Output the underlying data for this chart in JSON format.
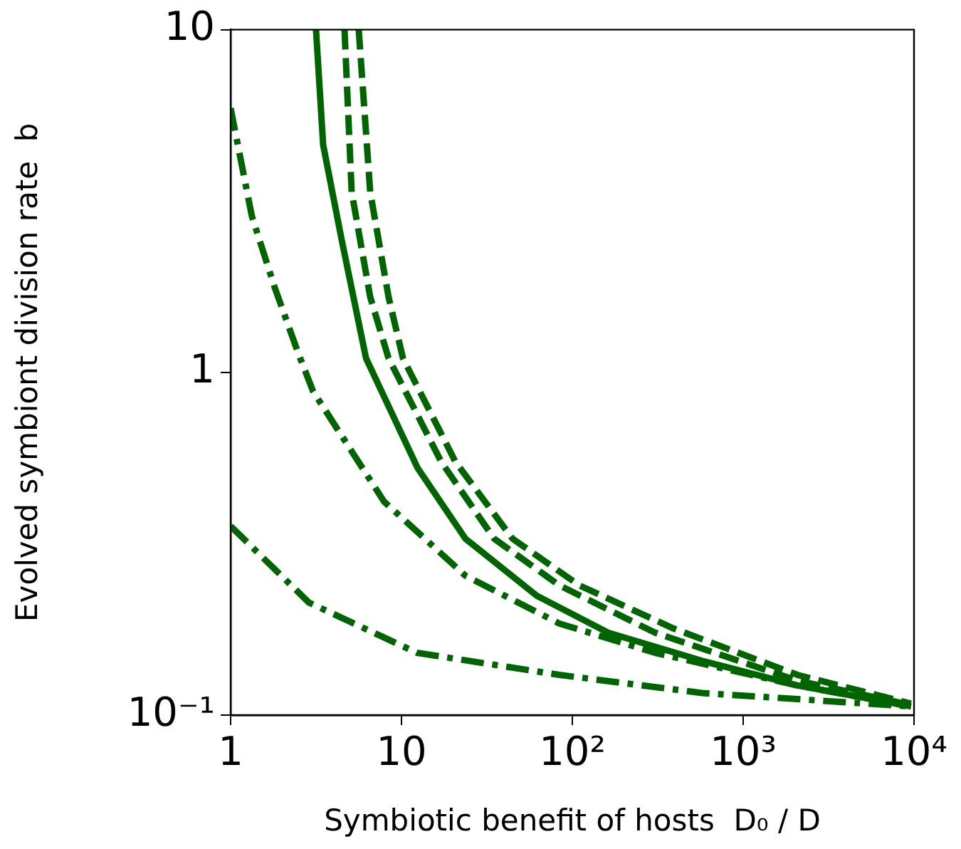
{
  "chart_data": {
    "type": "line",
    "xlabel": "Symbiotic benefit of hosts  D₀ / D",
    "ylabel": "Evolved symbiont division rate  b",
    "log": "xy",
    "xlim": [
      1,
      10000
    ],
    "ylim": [
      0.1,
      10
    ],
    "xticks": [
      1,
      10,
      {
        "value": 100,
        "label": "10²"
      },
      {
        "value": 1000,
        "label": "10³"
      },
      {
        "value": 10000,
        "label": "10⁴"
      }
    ],
    "yticks": [
      {
        "value": 0.1,
        "label": "10⁻¹"
      },
      1,
      10
    ],
    "grid": false,
    "legend": false,
    "marker": "none",
    "series": [
      {
        "color": "#006400",
        "line_style": "solid",
        "x": [
          3.16,
          3.48,
          4.47,
          6.2,
          12.4,
          23.7,
          62,
          162,
          575,
          2080,
          9600
        ],
        "values": [
          10,
          4.61,
          2.43,
          1.1,
          0.527,
          0.327,
          0.223,
          0.174,
          0.144,
          0.122,
          0.106
        ]
      },
      {
        "color": "#006400",
        "line_style": "dashed",
        "x": [
          4.64,
          5.11,
          6.56,
          8.4,
          17.1,
          34.9,
          84,
          305,
          2080,
          9600
        ],
        "values": [
          10,
          3.36,
          1.66,
          1.1,
          0.548,
          0.327,
          0.239,
          0.174,
          0.126,
          0.107
        ]
      },
      {
        "color": "#006400",
        "line_style": "dashed",
        "x": [
          5.62,
          6.56,
          8.4,
          10.2,
          20.7,
          44.7,
          110,
          390,
          2080,
          9600
        ],
        "values": [
          10,
          3.36,
          1.66,
          1.1,
          0.548,
          0.327,
          0.239,
          0.179,
          0.131,
          0.108
        ]
      },
      {
        "color": "#006400",
        "line_style": "dashdot",
        "x": [
          1,
          1.33,
          1.81,
          2.5,
          3.04,
          7.9,
          23.7,
          84,
          305,
          2080,
          9600
        ],
        "values": [
          5.9,
          2.86,
          1.77,
          1.13,
          0.88,
          0.42,
          0.255,
          0.185,
          0.152,
          0.122,
          0.106
        ]
      },
      {
        "color": "#006400",
        "line_style": "dashdot",
        "x": [
          1,
          2.87,
          12.3,
          84,
          575,
          9600
        ],
        "values": [
          0.356,
          0.213,
          0.152,
          0.131,
          0.116,
          0.106
        ]
      }
    ]
  }
}
